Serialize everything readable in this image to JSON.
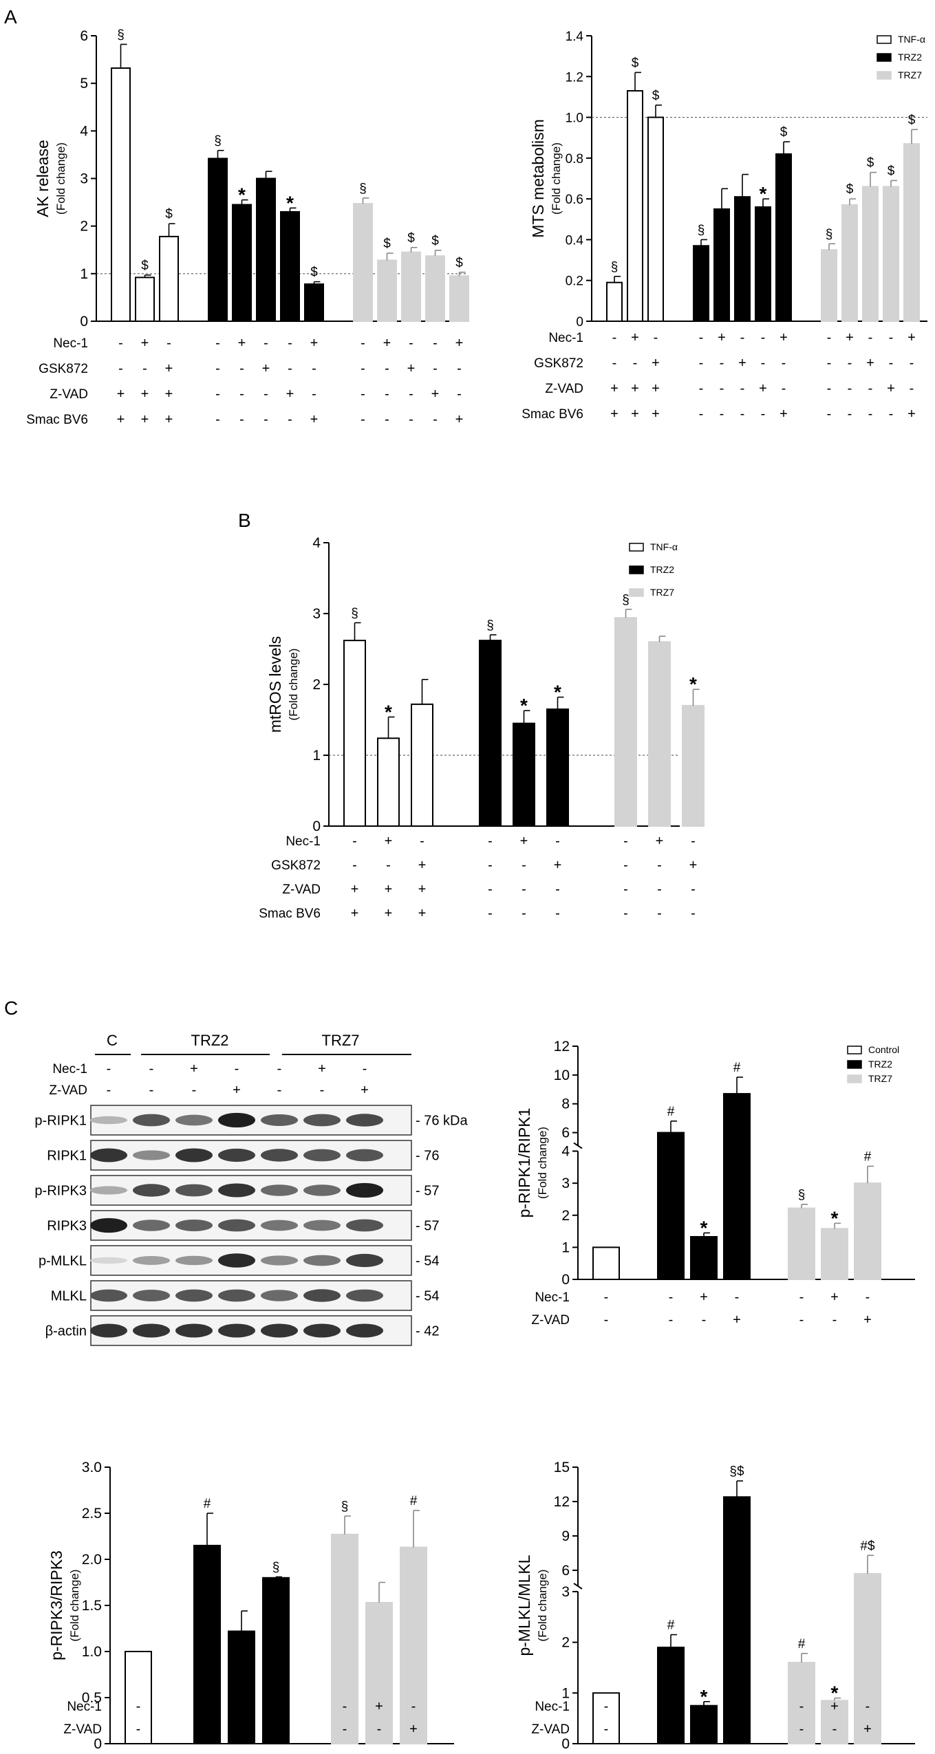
{
  "panel_labels": {
    "A": "A",
    "B": "B",
    "C": "C"
  },
  "colors": {
    "tnf": "#ffffff",
    "trz2": "#000000",
    "trz7": "#d3d3d3",
    "control": "#ffffff"
  },
  "chart_data": [
    {
      "id": "ak",
      "type": "bar",
      "panel": "A",
      "ylabel": "AK release",
      "ylabel2": "(Fold change)",
      "ylim": [
        0,
        6
      ],
      "yticks": [
        "0",
        "1",
        "2",
        "3",
        "4",
        "5",
        "6"
      ],
      "reference_line": 1,
      "grid": false,
      "series": [
        {
          "name": "TNF-α",
          "values": [
            5.32,
            0.92,
            1.78
          ],
          "errors": [
            0.5,
            0.05,
            0.27
          ],
          "marks": [
            "§",
            "$",
            "$"
          ]
        },
        {
          "name": "TRZ2",
          "values": [
            3.42,
            2.45,
            3.0,
            2.3,
            0.78
          ],
          "errors": [
            0.17,
            0.1,
            0.15,
            0.08,
            0.05
          ],
          "marks": [
            "§",
            "*",
            "",
            "*",
            "$"
          ]
        },
        {
          "name": "TRZ7",
          "values": [
            2.47,
            1.28,
            1.45,
            1.37,
            0.95
          ],
          "errors": [
            0.12,
            0.15,
            0.1,
            0.12,
            0.08
          ],
          "marks": [
            "§",
            "$",
            "$",
            "$",
            "$"
          ]
        }
      ],
      "treatments": [
        {
          "label": "Nec-1",
          "groups": [
            [
              "-",
              "+",
              "-"
            ],
            [
              "-",
              "+",
              "-",
              "-",
              "+"
            ],
            [
              "-",
              "+",
              "-",
              "-",
              "+"
            ]
          ]
        },
        {
          "label": "GSK872",
          "groups": [
            [
              "-",
              "-",
              "+"
            ],
            [
              "-",
              "-",
              "+",
              "-",
              "-"
            ],
            [
              "-",
              "-",
              "+",
              "-",
              "-"
            ]
          ]
        },
        {
          "label": "Z-VAD",
          "groups": [
            [
              "+",
              "+",
              "+"
            ],
            [
              "-",
              "-",
              "-",
              "+",
              "-"
            ],
            [
              "-",
              "-",
              "-",
              "+",
              "-"
            ]
          ]
        },
        {
          "label": "Smac BV6",
          "groups": [
            [
              "+",
              "+",
              "+"
            ],
            [
              "-",
              "-",
              "-",
              "-",
              "+"
            ],
            [
              "-",
              "-",
              "-",
              "-",
              "+"
            ]
          ]
        }
      ]
    },
    {
      "id": "mts",
      "type": "bar",
      "panel": "A",
      "ylabel": "MTS metabolism",
      "ylabel2": "(Fold change)",
      "ylim": [
        0,
        1.4
      ],
      "yticks": [
        "0",
        "0.2",
        "0.4",
        "0.6",
        "0.8",
        "1.0",
        "1.2",
        "1.4"
      ],
      "reference_line": 1,
      "grid": false,
      "legend_position": "top-right",
      "series": [
        {
          "name": "TNF-α",
          "values": [
            0.19,
            1.13,
            1.0
          ],
          "errors": [
            0.03,
            0.09,
            0.06
          ],
          "marks": [
            "§",
            "$",
            "$"
          ]
        },
        {
          "name": "TRZ2",
          "values": [
            0.37,
            0.55,
            0.61,
            0.56,
            0.82
          ],
          "errors": [
            0.03,
            0.1,
            0.11,
            0.04,
            0.06
          ],
          "marks": [
            "§",
            "",
            "",
            "*",
            "$"
          ]
        },
        {
          "name": "TRZ7",
          "values": [
            0.35,
            0.57,
            0.66,
            0.66,
            0.87
          ],
          "errors": [
            0.03,
            0.03,
            0.07,
            0.03,
            0.07
          ],
          "marks": [
            "§",
            "$",
            "$",
            "$",
            "$"
          ]
        }
      ],
      "treatments": [
        {
          "label": "Nec-1",
          "groups": [
            [
              "-",
              "+",
              "-"
            ],
            [
              "-",
              "+",
              "-",
              "-",
              "+"
            ],
            [
              "-",
              "+",
              "-",
              "-",
              "+"
            ]
          ]
        },
        {
          "label": "GSK872",
          "groups": [
            [
              "-",
              "-",
              "+"
            ],
            [
              "-",
              "-",
              "+",
              "-",
              "-"
            ],
            [
              "-",
              "-",
              "+",
              "-",
              "-"
            ]
          ]
        },
        {
          "label": "Z-VAD",
          "groups": [
            [
              "+",
              "+",
              "+"
            ],
            [
              "-",
              "-",
              "-",
              "+",
              "-"
            ],
            [
              "-",
              "-",
              "-",
              "+",
              "-"
            ]
          ]
        },
        {
          "label": "Smac BV6",
          "groups": [
            [
              "+",
              "+",
              "+"
            ],
            [
              "-",
              "-",
              "-",
              "-",
              "+"
            ],
            [
              "-",
              "-",
              "-",
              "-",
              "+"
            ]
          ]
        }
      ]
    },
    {
      "id": "mtros",
      "type": "bar",
      "panel": "B",
      "ylabel": "mtROS levels",
      "ylabel2": "(Fold change)",
      "ylim": [
        0,
        4
      ],
      "yticks": [
        "0",
        "1",
        "2",
        "3",
        "4"
      ],
      "reference_line": 1,
      "grid": false,
      "legend_position": "top-right",
      "series": [
        {
          "name": "TNF-α",
          "values": [
            2.62,
            1.24,
            1.72
          ],
          "errors": [
            0.25,
            0.3,
            0.35
          ],
          "marks": [
            "§",
            "*",
            ""
          ]
        },
        {
          "name": "TRZ2",
          "values": [
            2.62,
            1.45,
            1.65
          ],
          "errors": [
            0.08,
            0.18,
            0.17
          ],
          "marks": [
            "§",
            "*",
            "*"
          ]
        },
        {
          "name": "TRZ7",
          "values": [
            2.94,
            2.6,
            1.7
          ],
          "errors": [
            0.12,
            0.08,
            0.23
          ],
          "marks": [
            "§",
            "",
            "*"
          ]
        }
      ],
      "treatments": [
        {
          "label": "Nec-1",
          "groups": [
            [
              "-",
              "+",
              "-"
            ],
            [
              "-",
              "+",
              "-"
            ],
            [
              "-",
              "+",
              "-"
            ]
          ]
        },
        {
          "label": "GSK872",
          "groups": [
            [
              "-",
              "-",
              "+"
            ],
            [
              "-",
              "-",
              "+"
            ],
            [
              "-",
              "-",
              "+"
            ]
          ]
        },
        {
          "label": "Z-VAD",
          "groups": [
            [
              "+",
              "+",
              "+"
            ],
            [
              "-",
              "-",
              "-"
            ],
            [
              "-",
              "-",
              "-"
            ]
          ]
        },
        {
          "label": "Smac BV6",
          "groups": [
            [
              "+",
              "+",
              "+"
            ],
            [
              "-",
              "-",
              "-"
            ],
            [
              "-",
              "-",
              "-"
            ]
          ]
        }
      ]
    },
    {
      "id": "pripk1",
      "type": "bar",
      "panel": "C",
      "ylabel": "p-RIPK1/RIPK1",
      "ylabel2": "(Fold change)",
      "ylim": [
        0,
        12
      ],
      "axis_break": [
        4,
        5
      ],
      "yticks": [
        "0",
        "1",
        "2",
        "3",
        "4",
        "6",
        "8",
        "10",
        "12"
      ],
      "grid": false,
      "legend_position": "top-right",
      "series": [
        {
          "name": "Control",
          "values": [
            1.0
          ],
          "errors": [
            0
          ],
          "marks": [
            ""
          ]
        },
        {
          "name": "TRZ2",
          "values": [
            6.0,
            1.33,
            8.7
          ],
          "errors": [
            0.8,
            0.12,
            1.15
          ],
          "marks": [
            "#",
            "*",
            "#"
          ]
        },
        {
          "name": "TRZ7",
          "values": [
            2.22,
            1.58,
            3.0
          ],
          "errors": [
            0.12,
            0.17,
            0.53
          ],
          "marks": [
            "§",
            "*",
            "#"
          ]
        }
      ],
      "treatments": [
        {
          "label": "Nec-1",
          "groups": [
            [
              "-"
            ],
            [
              "-",
              "+",
              "-"
            ],
            [
              "-",
              "+",
              "-"
            ]
          ]
        },
        {
          "label": "Z-VAD",
          "groups": [
            [
              "-"
            ],
            [
              "-",
              "-",
              "+"
            ],
            [
              "-",
              "-",
              "+"
            ]
          ]
        }
      ]
    },
    {
      "id": "pripk3",
      "type": "bar",
      "panel": "C",
      "ylabel": "p-RIPK3/RIPK3",
      "ylabel2": "(Fold change)",
      "ylim": [
        0,
        3.0
      ],
      "yticks": [
        "0",
        "0.5",
        "1.0",
        "1.5",
        "2.0",
        "2.5",
        "3.0"
      ],
      "grid": false,
      "series": [
        {
          "name": "Control",
          "values": [
            1.0
          ],
          "errors": [
            0
          ],
          "marks": [
            ""
          ]
        },
        {
          "name": "TRZ2",
          "values": [
            2.15,
            1.22,
            1.8
          ],
          "errors": [
            0.35,
            0.22,
            0.01
          ],
          "marks": [
            "#",
            "",
            "§"
          ]
        },
        {
          "name": "TRZ7",
          "values": [
            2.27,
            1.53,
            2.13
          ],
          "errors": [
            0.2,
            0.22,
            0.4
          ],
          "marks": [
            "§",
            "",
            "#"
          ]
        }
      ],
      "treatments": [
        {
          "label": "Nec-1",
          "groups": [
            [
              "-"
            ],
            [
              "-",
              "+",
              "-"
            ],
            [
              "-",
              "+",
              "-"
            ]
          ]
        },
        {
          "label": "Z-VAD",
          "groups": [
            [
              "-"
            ],
            [
              "-",
              "-",
              "+"
            ],
            [
              "-",
              "-",
              "+"
            ]
          ]
        }
      ]
    },
    {
      "id": "pmlkl",
      "type": "bar",
      "panel": "C",
      "ylabel": "p-MLKL/MLKL",
      "ylabel2": "(Fold change)",
      "ylim": [
        0,
        15
      ],
      "axis_break": [
        3,
        4.5
      ],
      "yticks": [
        "0",
        "1",
        "2",
        "3",
        "6",
        "9",
        "12",
        "15"
      ],
      "grid": false,
      "series": [
        {
          "name": "Control",
          "values": [
            1.0
          ],
          "errors": [
            0
          ],
          "marks": [
            ""
          ]
        },
        {
          "name": "TRZ2",
          "values": [
            1.9,
            0.75,
            12.4
          ],
          "errors": [
            0.25,
            0.08,
            1.4
          ],
          "marks": [
            "#",
            "*",
            "§$"
          ]
        },
        {
          "name": "TRZ7",
          "values": [
            1.6,
            0.85,
            5.7
          ],
          "errors": [
            0.18,
            0.05,
            1.6
          ],
          "marks": [
            "#",
            "*",
            "#$"
          ]
        }
      ],
      "treatments": [
        {
          "label": "Nec-1",
          "groups": [
            [
              "-"
            ],
            [
              "-",
              "+",
              "-"
            ],
            [
              "-",
              "+",
              "-"
            ]
          ]
        },
        {
          "label": "Z-VAD",
          "groups": [
            [
              "-"
            ],
            [
              "-",
              "-",
              "+"
            ],
            [
              "-",
              "-",
              "+"
            ]
          ]
        }
      ]
    }
  ],
  "western_blot": {
    "lane_groups": [
      "C",
      "TRZ2",
      "TRZ7"
    ],
    "treatments": [
      {
        "label": "Nec-1",
        "lanes": [
          "-",
          "-",
          "+",
          "-",
          "-",
          "+",
          "-"
        ]
      },
      {
        "label": "Z-VAD",
        "lanes": [
          "-",
          "-",
          "-",
          "+",
          "-",
          "-",
          "+"
        ]
      }
    ],
    "bands": [
      {
        "protein": "p-RIPK1",
        "mw": "76 kDa",
        "intensity": [
          0.25,
          0.7,
          0.55,
          0.95,
          0.65,
          0.7,
          0.75
        ]
      },
      {
        "protein": "RIPK1",
        "mw": "76",
        "intensity": [
          0.85,
          0.45,
          0.85,
          0.8,
          0.75,
          0.7,
          0.7
        ]
      },
      {
        "protein": "p-RIPK3",
        "mw": "57",
        "intensity": [
          0.3,
          0.75,
          0.7,
          0.85,
          0.6,
          0.6,
          0.95
        ]
      },
      {
        "protein": "RIPK3",
        "mw": "57",
        "intensity": [
          0.95,
          0.6,
          0.65,
          0.7,
          0.55,
          0.55,
          0.7
        ]
      },
      {
        "protein": "p-MLKL",
        "mw": "54",
        "intensity": [
          0.1,
          0.35,
          0.4,
          0.9,
          0.45,
          0.55,
          0.8
        ]
      },
      {
        "protein": "MLKL",
        "mw": "54",
        "intensity": [
          0.7,
          0.65,
          0.7,
          0.7,
          0.6,
          0.75,
          0.7
        ]
      },
      {
        "protein": "β-actin",
        "mw": "42",
        "intensity": [
          0.85,
          0.85,
          0.85,
          0.85,
          0.85,
          0.85,
          0.85
        ]
      }
    ]
  }
}
